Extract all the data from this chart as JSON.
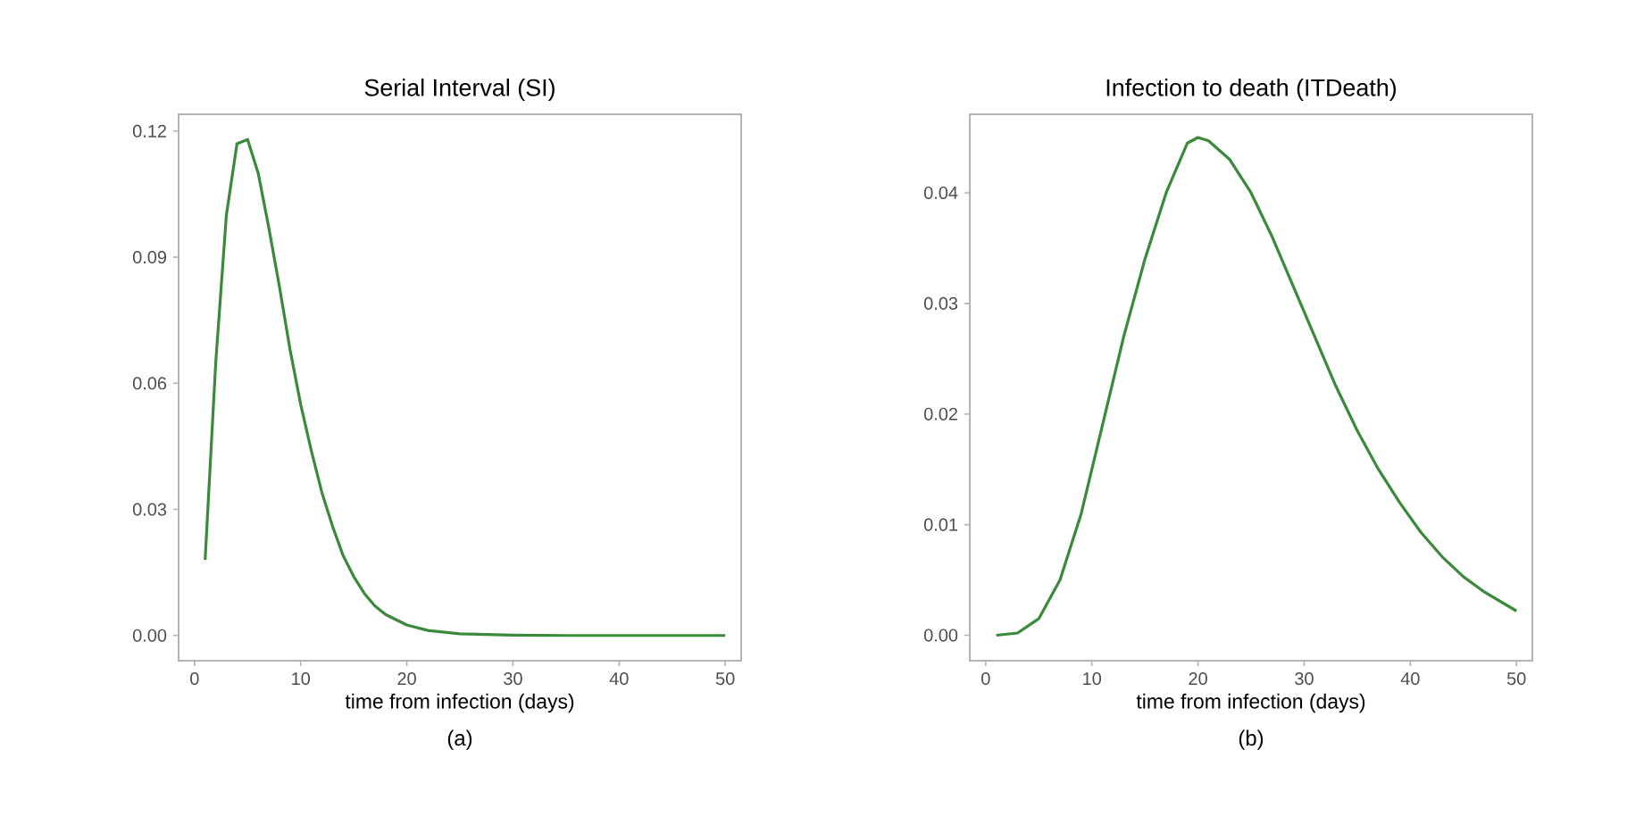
{
  "chart_data": [
    {
      "type": "line",
      "title": "Serial Interval (SI)",
      "xlabel": "time from infection (days)",
      "annotations": [
        "(a)"
      ],
      "xlim": [
        -1.5,
        51.5
      ],
      "ylim": [
        -0.006,
        0.124
      ],
      "xticks": [
        0,
        10,
        20,
        30,
        40,
        50
      ],
      "yticks": [
        {
          "value": 0,
          "label": "0.00"
        },
        {
          "value": 0.03,
          "label": "0.03"
        },
        {
          "value": 0.06,
          "label": "0.06"
        },
        {
          "value": 0.09,
          "label": "0.09"
        },
        {
          "value": 0.12,
          "label": "0.12"
        }
      ],
      "grid": false,
      "series": [
        {
          "color": "#3a8a3a",
          "x": [
            1,
            2,
            3,
            4,
            5,
            6,
            7,
            8,
            9,
            10,
            11,
            12,
            13,
            14,
            15,
            16,
            17,
            18,
            20,
            22,
            25,
            30,
            35,
            40,
            45,
            50
          ],
          "values": [
            0.018,
            0.065,
            0.1,
            0.117,
            0.118,
            0.11,
            0.097,
            0.083,
            0.068,
            0.055,
            0.044,
            0.034,
            0.026,
            0.019,
            0.014,
            0.01,
            0.007,
            0.005,
            0.0025,
            0.0012,
            0.0004,
            0.0001,
            0,
            0,
            0,
            0
          ]
        }
      ]
    },
    {
      "type": "line",
      "title": "Infection to death (ITDeath)",
      "xlabel": "time from infection (days)",
      "annotations": [
        "(b)"
      ],
      "xlim": [
        -1.5,
        51.5
      ],
      "ylim": [
        -0.0023,
        0.0471
      ],
      "xticks": [
        0,
        10,
        20,
        30,
        40,
        50
      ],
      "yticks": [
        {
          "value": 0,
          "label": "0.00"
        },
        {
          "value": 0.01,
          "label": "0.01"
        },
        {
          "value": 0.02,
          "label": "0.02"
        },
        {
          "value": 0.03,
          "label": "0.03"
        },
        {
          "value": 0.04,
          "label": "0.04"
        }
      ],
      "grid": false,
      "series": [
        {
          "color": "#3a8a3a",
          "x": [
            1,
            3,
            5,
            7,
            9,
            11,
            13,
            15,
            17,
            19,
            20,
            21,
            23,
            25,
            27,
            29,
            31,
            33,
            35,
            37,
            39,
            41,
            43,
            45,
            47,
            50
          ],
          "values": [
            0,
            0.0002,
            0.0015,
            0.005,
            0.011,
            0.019,
            0.027,
            0.034,
            0.04,
            0.0445,
            0.045,
            0.0447,
            0.043,
            0.04,
            0.036,
            0.0315,
            0.027,
            0.0225,
            0.0185,
            0.015,
            0.012,
            0.0093,
            0.0071,
            0.0053,
            0.0039,
            0.0022
          ]
        }
      ]
    }
  ]
}
